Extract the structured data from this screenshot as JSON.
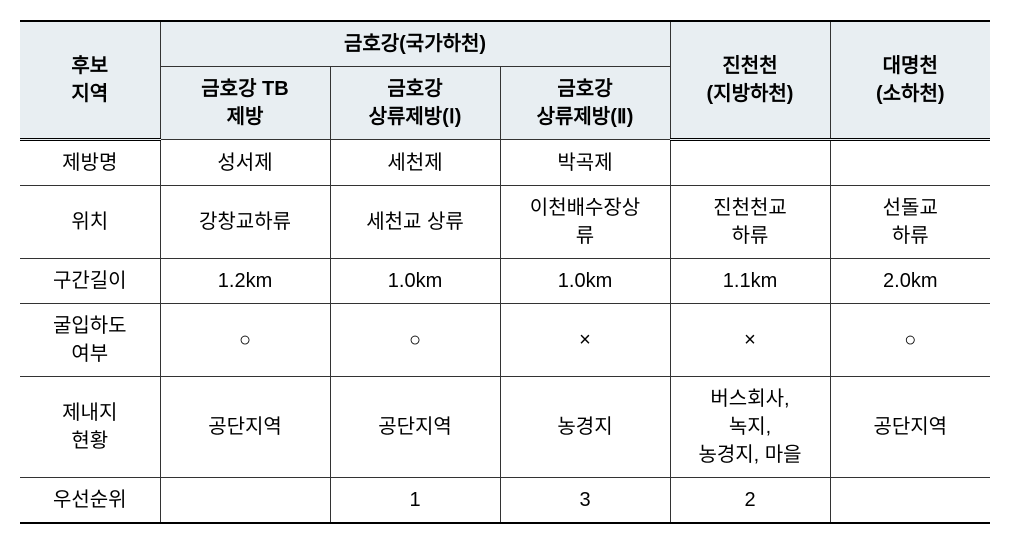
{
  "header": {
    "candidate_region": "후보\n지역",
    "geumho_national": "금호강(국가하천)",
    "geumho_tb": "금호강 TB\n제방",
    "geumho_upstream1": "금호강\n상류제방(Ⅰ)",
    "geumho_upstream2": "금호강\n상류제방(Ⅱ)",
    "jincheon": "진천천\n(지방하천)",
    "daemyeong": "대명천\n(소하천)"
  },
  "rows": {
    "levee_name": {
      "label": "제방명",
      "col1": "성서제",
      "col2": "세천제",
      "col3": "박곡제",
      "col4": "",
      "col5": ""
    },
    "location": {
      "label": "위치",
      "col1": "강창교하류",
      "col2": "세천교 상류",
      "col3": "이천배수장상\n류",
      "col4": "진천천교\n하류",
      "col5": "선돌교\n하류"
    },
    "section_length": {
      "label": "구간길이",
      "col1": "1.2km",
      "col2": "1.0km",
      "col3": "1.0km",
      "col4": "1.1km",
      "col5": "2.0km"
    },
    "confluence": {
      "label": "굴입하도\n여부",
      "col1": "○",
      "col2": "○",
      "col3": "×",
      "col4": "×",
      "col5": "○"
    },
    "inland_status": {
      "label": "제내지\n현황",
      "col1": "공단지역",
      "col2": "공단지역",
      "col3": "농경지",
      "col4": "버스회사,\n녹지,\n농경지, 마을",
      "col5": "공단지역"
    },
    "priority": {
      "label": "우선순위",
      "col1": "",
      "col2": "1",
      "col3": "3",
      "col4": "2",
      "col5": ""
    }
  }
}
